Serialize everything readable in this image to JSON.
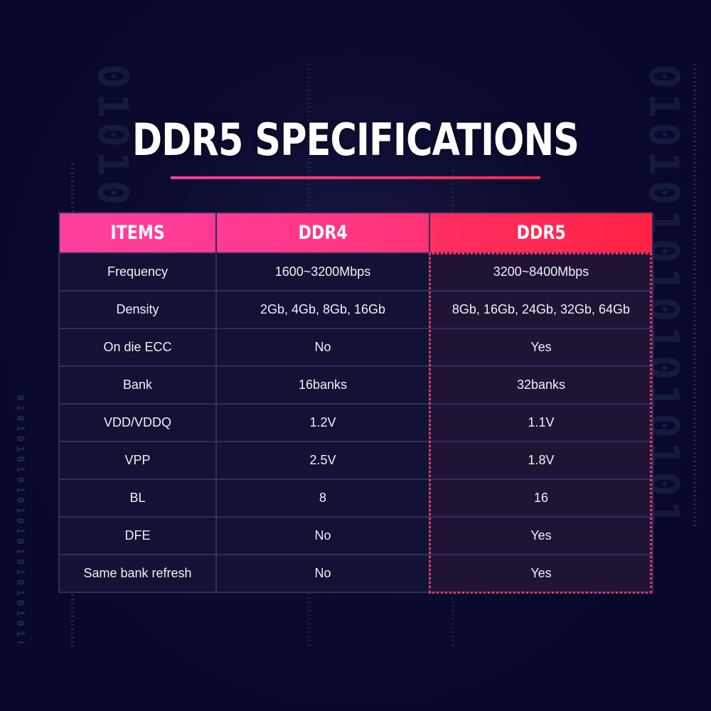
{
  "title": "DDR5 SPECIFICATIONS",
  "colors": {
    "accent_pink": "#ff3d9a",
    "accent_red": "#ff2244",
    "background": "#07082a"
  },
  "table": {
    "headers": [
      "ITEMS",
      "DDR4",
      "DDR5"
    ],
    "rows": [
      [
        "Frequency",
        "1600~3200Mbps",
        "3200~8400Mbps"
      ],
      [
        "Density",
        "2Gb, 4Gb, 8Gb, 16Gb",
        "8Gb, 16Gb, 24Gb, 32Gb, 64Gb"
      ],
      [
        "On die ECC",
        "No",
        "Yes"
      ],
      [
        "Bank",
        "16banks",
        "32banks"
      ],
      [
        "VDD/VDDQ",
        "1.2V",
        "1.1V"
      ],
      [
        "VPP",
        "2.5V",
        "1.8V"
      ],
      [
        "BL",
        "8",
        "16"
      ],
      [
        "DFE",
        "No",
        "Yes"
      ],
      [
        "Same bank refresh",
        "No",
        "Yes"
      ]
    ]
  }
}
